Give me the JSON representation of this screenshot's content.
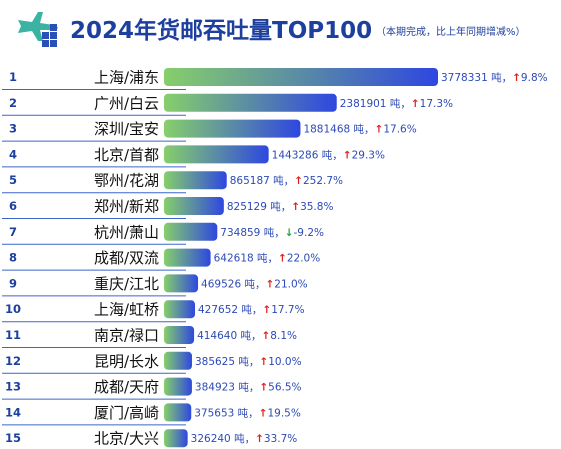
{
  "header": {
    "title": "2024年货邮吞吐量TOP100",
    "subtitle": "（本期完成，比上年同期增减%）"
  },
  "colors": {
    "bar_start": "#86cf6b",
    "bar_end": "#2e47e0",
    "title": "#1d3f9e",
    "rank_line": "#3a66c9",
    "up": "#e02020",
    "down": "#24a148"
  },
  "chart_data": {
    "type": "bar",
    "orientation": "horizontal",
    "unit": "吨",
    "categories": [
      "上海/浦东",
      "广州/白云",
      "深圳/宝安",
      "北京/首都",
      "鄂州/花湖",
      "郑州/新郑",
      "杭州/萧山",
      "成都/双流",
      "重庆/江北",
      "上海/虹桥",
      "南京/禄口",
      "昆明/长水",
      "成都/天府",
      "厦门/高崎",
      "北京/大兴"
    ],
    "ranks": [
      "1",
      "2",
      "3",
      "4",
      "5",
      "6",
      "7",
      "8",
      "9",
      "10",
      "11",
      "12",
      "13",
      "14",
      "15"
    ],
    "values": [
      3778331,
      2381901,
      1881468,
      1443286,
      865187,
      825129,
      734859,
      642618,
      469526,
      427652,
      414640,
      385625,
      384923,
      375653,
      326240
    ],
    "changes": [
      "9.8%",
      "17.3%",
      "17.6%",
      "29.3%",
      "252.7%",
      "35.8%",
      "-9.2%",
      "22.0%",
      "21.0%",
      "17.7%",
      "8.1%",
      "10.0%",
      "56.5%",
      "19.5%",
      "33.7%"
    ],
    "directions": [
      "up",
      "up",
      "up",
      "up",
      "up",
      "up",
      "down",
      "up",
      "up",
      "up",
      "up",
      "up",
      "up",
      "up",
      "up"
    ]
  }
}
